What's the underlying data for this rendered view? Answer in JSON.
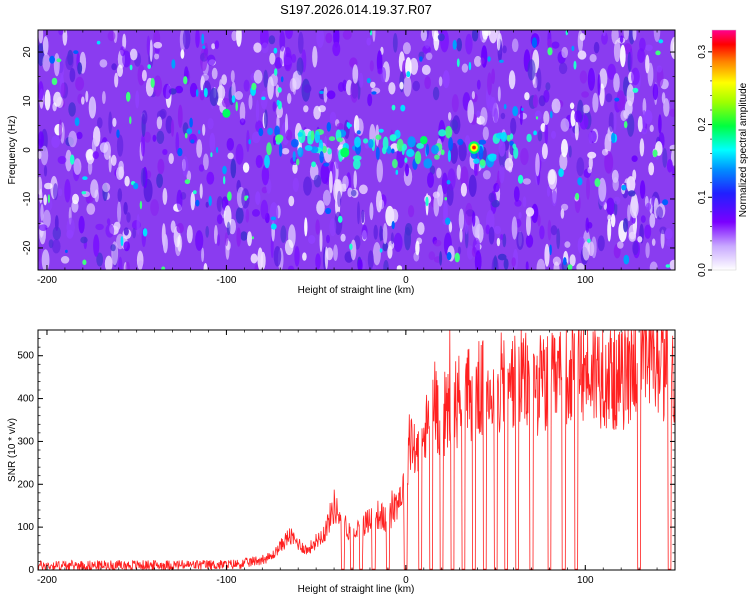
{
  "title": "S197.2026.014.19.37.R07",
  "chart_data": [
    {
      "type": "heatmap",
      "xlabel": "Height of straight line (km)",
      "ylabel": "Frequency (Hz)",
      "xlim": [
        -205,
        150
      ],
      "ylim": [
        -24.5,
        24.5
      ],
      "xticks": [
        -200,
        -100,
        0,
        100
      ],
      "yticks": [
        -20,
        -10,
        0,
        10,
        20
      ],
      "colorbar": {
        "label": "Normalized spectral amplitude",
        "range": [
          0,
          0.33
        ],
        "ticks": [
          0.0,
          0.1,
          0.2,
          0.3
        ],
        "tick_labels": [
          "0.0",
          "0.1",
          "0.2",
          "0.3"
        ],
        "colors": [
          "#ffffff",
          "#7a00ff",
          "#0000ff",
          "#00ffff",
          "#00ff00",
          "#ffff00",
          "#ff8000",
          "#ff0000",
          "#ff0080"
        ]
      },
      "hotspots": [
        {
          "x": 38,
          "y": 0.5,
          "value": 0.33
        },
        {
          "x": -34,
          "y": -0.5,
          "value": 0.2
        },
        {
          "x": -100,
          "y": 7.5,
          "value": 0.15
        },
        {
          "x": 10,
          "y": 2,
          "value": 0.12
        }
      ]
    },
    {
      "type": "line",
      "xlabel": "Height of straight line (km)",
      "ylabel": "SNR (10 * v/v)",
      "xlim": [
        -205,
        150
      ],
      "ylim": [
        0,
        560
      ],
      "xticks": [
        -200,
        -100,
        0,
        100
      ],
      "yticks": [
        0,
        100,
        200,
        300,
        400,
        500
      ],
      "color": "#ff2020",
      "series": [
        {
          "name": "SNR",
          "x": [
            -205,
            -100,
            -90,
            -75,
            -65,
            -55,
            -45,
            -40,
            -35,
            -30,
            -25,
            -20,
            -15,
            -10,
            -5,
            0,
            2,
            5,
            10,
            15,
            20,
            30,
            40,
            60,
            80,
            100,
            120,
            130,
            140,
            150
          ],
          "values": [
            10,
            12,
            15,
            30,
            80,
            45,
            90,
            150,
            110,
            85,
            100,
            120,
            130,
            110,
            160,
            200,
            330,
            270,
            300,
            390,
            360,
            400,
            420,
            440,
            430,
            470,
            440,
            500,
            480,
            460
          ]
        }
      ],
      "dropouts": [
        -35,
        -30,
        -25,
        -18,
        -10,
        0,
        8,
        14,
        20,
        26,
        32,
        38,
        44,
        50,
        56,
        62,
        70,
        80,
        88,
        95,
        130,
        147
      ]
    }
  ]
}
